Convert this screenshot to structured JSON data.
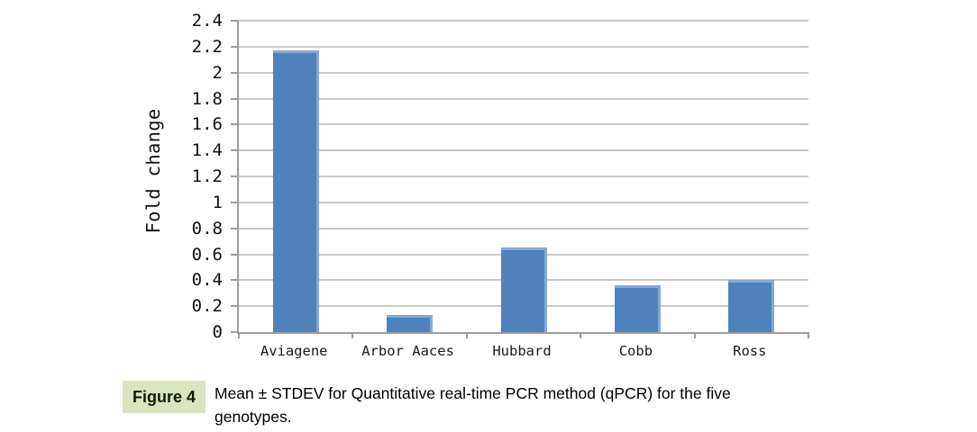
{
  "chart_data": {
    "type": "bar",
    "title": "",
    "categories": [
      "Aviagene",
      "Arbor Aaces",
      "Hubbard",
      "Cobb",
      "Ross"
    ],
    "values": [
      2.17,
      0.13,
      0.65,
      0.36,
      0.4
    ],
    "xlabel": "",
    "ylabel": "Fold change",
    "ylim": [
      0,
      2.4
    ],
    "ytick_step": 0.2,
    "ytick_labels": [
      "0",
      "0.2",
      "0.4",
      "0.6",
      "0.8",
      "1",
      "1.2",
      "1.4",
      "1.6",
      "1.8",
      "2",
      "2.2",
      "2.4"
    ],
    "grid": true,
    "legend": false,
    "bar_color": "#4f81bd",
    "bar_edge_color": "#87a9d2",
    "gridline_color": "#c9c9c9",
    "axis_color": "#9d9d9d"
  },
  "caption": {
    "badge": "Figure 4",
    "badge_bg": "#d9e5bd",
    "line1": "Mean ± STDEV for Quantitative real-time PCR method (qPCR) for the five",
    "line2": "genotypes.",
    "full_text": "Mean ± STDEV for Quantitative real-time PCR method (qPCR) for the five genotypes."
  }
}
